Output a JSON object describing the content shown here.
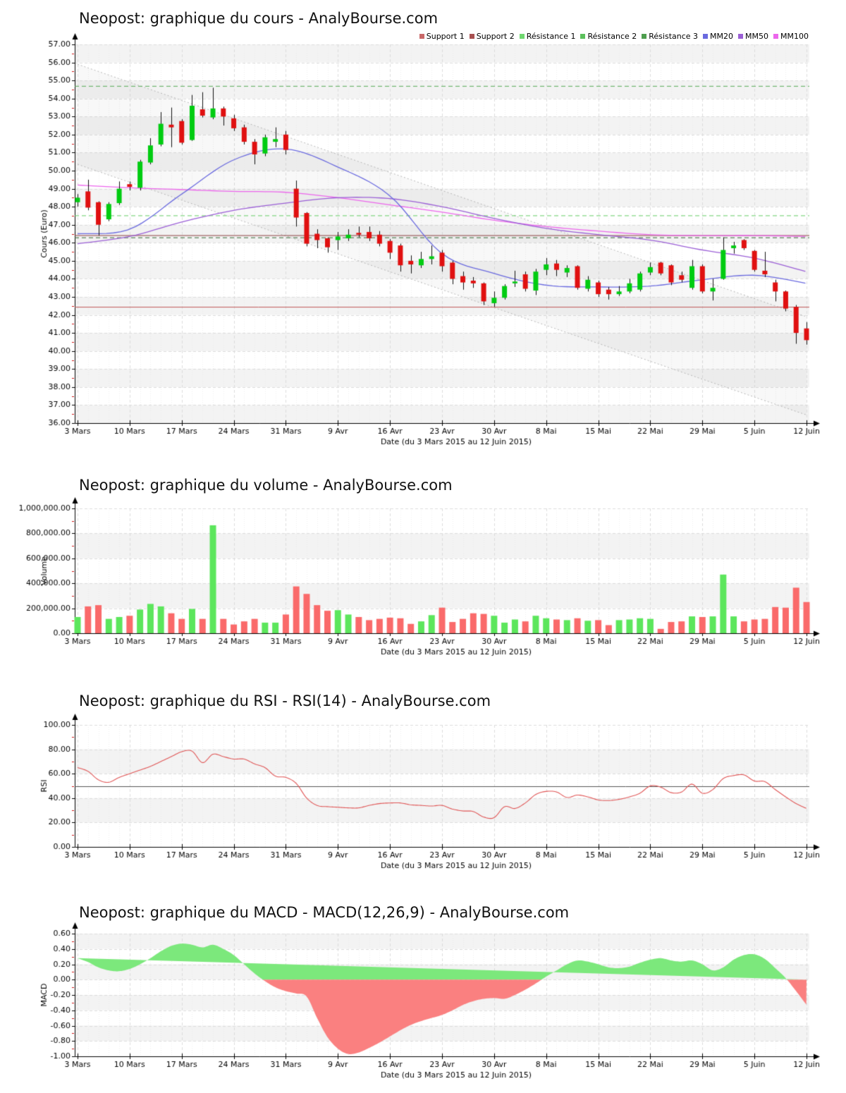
{
  "page_background": "#ffffff",
  "x_axis_label": "Date (du 3 Mars 2015 au 12 Juin 2015)",
  "x_tick_labels": [
    "3 Mars",
    "10 Mars",
    "17 Mars",
    "24 Mars",
    "31 Mars",
    "9 Avr",
    "16 Avr",
    "23 Avr",
    "30 Avr",
    "8 Mai",
    "15 Mai",
    "22 Mai",
    "29 Mai",
    "5 Juin",
    "12 Juin"
  ],
  "x_tick_indices": [
    0,
    5,
    10,
    15,
    20,
    25,
    30,
    35,
    40,
    45,
    50,
    55,
    60,
    65,
    70
  ],
  "dates": [
    "3 Mars",
    "4 Mars",
    "5 Mars",
    "6 Mars",
    "9 Mars",
    "10 Mars",
    "11 Mars",
    "12 Mars",
    "13 Mars",
    "16 Mars",
    "17 Mars",
    "18 Mars",
    "19 Mars",
    "20 Mars",
    "23 Mars",
    "24 Mars",
    "25 Mars",
    "26 Mars",
    "27 Mars",
    "30 Mars",
    "31 Mars",
    "1 Avr",
    "2 Avr",
    "7 Avr",
    "8 Avr",
    "9 Avr",
    "10 Avr",
    "13 Avr",
    "14 Avr",
    "15 Avr",
    "16 Avr",
    "17 Avr",
    "20 Avr",
    "21 Avr",
    "22 Avr",
    "23 Avr",
    "24 Avr",
    "27 Avr",
    "28 Avr",
    "29 Avr",
    "30 Avr",
    "4 Mai",
    "5 Mai",
    "6 Mai",
    "7 Mai",
    "8 Mai",
    "11 Mai",
    "12 Mai",
    "13 Mai",
    "14 Mai",
    "15 Mai",
    "18 Mai",
    "19 Mai",
    "20 Mai",
    "21 Mai",
    "22 Mai",
    "25 Mai",
    "26 Mai",
    "27 Mai",
    "28 Mai",
    "29 Mai",
    "1 Juin",
    "2 Juin",
    "3 Juin",
    "4 Juin",
    "5 Juin",
    "8 Juin",
    "9 Juin",
    "10 Juin",
    "11 Juin",
    "12 Juin"
  ],
  "legend": {
    "items": [
      {
        "label": "Support 1",
        "color": "#C96868"
      },
      {
        "label": "Support 2",
        "color": "#A85050"
      },
      {
        "label": "Résistance 1",
        "color": "#6FD86F"
      },
      {
        "label": "Résistance 2",
        "color": "#5CC05C"
      },
      {
        "label": "Résistance 3",
        "color": "#4E9E4E"
      },
      {
        "label": "MM20",
        "color": "#6A6ADF"
      },
      {
        "label": "MM50",
        "color": "#9B5FD6"
      },
      {
        "label": "MM100",
        "color": "#EC66EC"
      }
    ]
  },
  "colors": {
    "candle_up": "#00CC11",
    "candle_down": "#E01010",
    "wick": "#111111",
    "vol_up": "#5CE65C",
    "vol_down": "#FA6A6A",
    "mm20": "#6A6ADF",
    "mm50": "#9B5FD6",
    "mm100": "#EC66EC",
    "support1": "#C05858",
    "support2": "#8B4242",
    "res1": "#66CC66",
    "res2": "#55AA55",
    "res3": "#336633",
    "rsi_line": "#E05555",
    "rsi_mid": "#555555",
    "macd_pos": "#7CE87C",
    "macd_neg": "#FA8080",
    "channel": "#B5B5B5",
    "channel_fill": "rgba(120,120,120,0.055)",
    "grid": "#DCDCDC",
    "grid_minor": "#EDEDED",
    "band": "#F3F3F3",
    "axis": "#000000",
    "tick_minor": "#CC1111",
    "text": "#000000"
  },
  "chart_data": [
    {
      "id": "price",
      "type": "candlestick",
      "title": "Neopost: graphique du cours - AnalyBourse.com",
      "ylabel": "Cours (Euro)",
      "ylim": [
        36,
        57
      ],
      "ystep": 1,
      "y_tick_labels": [
        "36.00",
        "37.00",
        "38.00",
        "39.00",
        "40.00",
        "41.00",
        "42.00",
        "43.00",
        "44.00",
        "45.00",
        "46.00",
        "47.00",
        "48.00",
        "49.00",
        "50.00",
        "51.00",
        "52.00",
        "53.00",
        "54.00",
        "55.00",
        "56.00",
        "57.00"
      ],
      "ohlc": [
        [
          48.25,
          48.7,
          48.0,
          48.5
        ],
        [
          48.85,
          49.5,
          47.8,
          47.95
        ],
        [
          48.25,
          48.3,
          46.4,
          47.0
        ],
        [
          47.3,
          48.25,
          47.2,
          48.15
        ],
        [
          48.2,
          49.4,
          48.1,
          49.0
        ],
        [
          49.25,
          49.4,
          48.9,
          49.1
        ],
        [
          49.05,
          50.6,
          48.9,
          50.5
        ],
        [
          50.45,
          51.8,
          50.35,
          51.4
        ],
        [
          51.45,
          53.25,
          51.35,
          52.6
        ],
        [
          52.55,
          53.5,
          51.3,
          52.4
        ],
        [
          52.75,
          52.85,
          51.45,
          51.55
        ],
        [
          51.7,
          54.2,
          51.65,
          53.6
        ],
        [
          53.4,
          54.35,
          52.95,
          53.05
        ],
        [
          52.95,
          54.6,
          52.85,
          53.45
        ],
        [
          53.45,
          53.55,
          52.5,
          53.0
        ],
        [
          52.9,
          53.1,
          52.2,
          52.35
        ],
        [
          52.4,
          52.55,
          51.45,
          51.6
        ],
        [
          51.6,
          51.75,
          50.35,
          50.9
        ],
        [
          50.95,
          52.0,
          50.8,
          51.85
        ],
        [
          51.6,
          52.4,
          51.3,
          51.75
        ],
        [
          52.0,
          52.2,
          50.9,
          51.15
        ],
        [
          49.0,
          49.45,
          46.9,
          47.4
        ],
        [
          47.65,
          47.7,
          45.8,
          45.95
        ],
        [
          46.5,
          46.75,
          45.7,
          46.15
        ],
        [
          46.25,
          46.3,
          45.45,
          45.75
        ],
        [
          46.15,
          46.6,
          45.6,
          46.35
        ],
        [
          46.25,
          46.75,
          46.1,
          46.45
        ],
        [
          46.55,
          46.9,
          46.3,
          46.45
        ],
        [
          46.6,
          46.9,
          46.1,
          46.25
        ],
        [
          46.45,
          46.65,
          45.8,
          45.95
        ],
        [
          46.1,
          46.2,
          45.1,
          45.45
        ],
        [
          45.85,
          45.95,
          44.4,
          44.75
        ],
        [
          45.0,
          45.3,
          44.3,
          44.8
        ],
        [
          44.75,
          45.5,
          44.6,
          45.1
        ],
        [
          45.1,
          45.85,
          44.8,
          45.25
        ],
        [
          45.45,
          45.6,
          44.4,
          44.7
        ],
        [
          44.9,
          45.0,
          43.7,
          44.0
        ],
        [
          44.15,
          44.4,
          43.4,
          43.8
        ],
        [
          43.9,
          44.1,
          43.5,
          43.75
        ],
        [
          43.75,
          43.8,
          42.55,
          42.75
        ],
        [
          42.65,
          43.3,
          42.45,
          42.95
        ],
        [
          42.95,
          43.7,
          42.85,
          43.6
        ],
        [
          43.75,
          44.45,
          43.55,
          43.85
        ],
        [
          44.25,
          44.4,
          43.3,
          43.45
        ],
        [
          43.35,
          44.55,
          43.1,
          44.4
        ],
        [
          44.5,
          45.15,
          44.2,
          44.8
        ],
        [
          44.85,
          45.05,
          44.15,
          44.5
        ],
        [
          44.35,
          44.75,
          44.1,
          44.6
        ],
        [
          44.7,
          44.75,
          43.4,
          43.5
        ],
        [
          43.45,
          44.15,
          43.3,
          43.95
        ],
        [
          43.8,
          43.9,
          43.0,
          43.15
        ],
        [
          43.4,
          43.55,
          42.85,
          43.15
        ],
        [
          43.15,
          43.6,
          43.05,
          43.3
        ],
        [
          43.3,
          44.0,
          43.2,
          43.75
        ],
        [
          43.4,
          44.4,
          43.3,
          44.3
        ],
        [
          44.35,
          44.9,
          44.2,
          44.65
        ],
        [
          44.9,
          44.95,
          44.2,
          44.3
        ],
        [
          44.75,
          44.8,
          43.65,
          43.8
        ],
        [
          44.2,
          44.4,
          43.8,
          43.95
        ],
        [
          43.5,
          45.05,
          43.4,
          44.7
        ],
        [
          44.7,
          44.8,
          43.2,
          43.3
        ],
        [
          43.3,
          44.0,
          42.8,
          43.5
        ],
        [
          44.0,
          46.3,
          43.95,
          45.6
        ],
        [
          45.7,
          46.05,
          45.4,
          45.85
        ],
        [
          46.15,
          46.2,
          45.6,
          45.7
        ],
        [
          45.55,
          45.6,
          44.4,
          44.5
        ],
        [
          44.45,
          45.5,
          44.1,
          44.25
        ],
        [
          43.8,
          43.95,
          42.75,
          43.3
        ],
        [
          43.3,
          43.35,
          42.2,
          42.35
        ],
        [
          42.45,
          42.55,
          40.4,
          41.0
        ],
        [
          41.25,
          41.6,
          40.35,
          40.6
        ]
      ],
      "moving_averages": {
        "defined_at": "x_tick_indices",
        "MM20": [
          46.5,
          46.75,
          48.7,
          50.6,
          51.2,
          50.2,
          48.6,
          45.4,
          44.3,
          43.65,
          43.55,
          43.6,
          43.95,
          44.2,
          43.75
        ],
        "MM50": [
          45.95,
          46.35,
          47.15,
          47.8,
          48.2,
          48.5,
          48.45,
          48.0,
          47.35,
          46.8,
          46.45,
          46.15,
          45.6,
          45.15,
          44.4
        ],
        "MM100": [
          49.2,
          49.05,
          48.95,
          48.85,
          48.8,
          48.5,
          48.1,
          47.7,
          47.25,
          46.9,
          46.65,
          46.45,
          46.4,
          46.4,
          46.35
        ]
      },
      "levels": {
        "supports": [
          {
            "label": "Support 1",
            "value": 42.45
          },
          {
            "label": "Support 2",
            "value": 46.42
          }
        ],
        "resistances": [
          {
            "label": "Résistance 1",
            "value": 47.52
          },
          {
            "label": "Résistance 2",
            "value": 54.7
          },
          {
            "label": "Résistance 3",
            "value": 46.3
          }
        ]
      },
      "trend_channel": {
        "upper_start": 55.9,
        "upper_end": 41.9,
        "lower_start": 50.35,
        "lower_end": 36.45
      }
    },
    {
      "id": "volume",
      "type": "bar",
      "title": "Neopost: graphique du volume - AnalyBourse.com",
      "ylabel": "Volume",
      "ylim": [
        0,
        1000000
      ],
      "ystep": 200000,
      "y_tick_labels": [
        "0.00",
        "200,000.00",
        "400,000.00",
        "600,000.00",
        "800,000.00",
        "1,000,000.00"
      ],
      "values": [
        130000,
        215000,
        225000,
        115000,
        130000,
        140000,
        190000,
        235000,
        215000,
        160000,
        115000,
        195000,
        115000,
        865000,
        115000,
        70000,
        95000,
        115000,
        85000,
        85000,
        150000,
        375000,
        315000,
        225000,
        180000,
        185000,
        150000,
        130000,
        105000,
        115000,
        125000,
        120000,
        75000,
        95000,
        145000,
        205000,
        90000,
        115000,
        160000,
        155000,
        140000,
        85000,
        110000,
        95000,
        140000,
        120000,
        110000,
        105000,
        120000,
        100000,
        105000,
        65000,
        105000,
        110000,
        120000,
        115000,
        35000,
        90000,
        95000,
        135000,
        130000,
        135000,
        470000,
        135000,
        95000,
        110000,
        115000,
        210000,
        205000,
        365000,
        250000
      ]
    },
    {
      "id": "rsi",
      "type": "line",
      "title": "Neopost: graphique du RSI - RSI(14) - AnalyBourse.com",
      "ylabel": "RSI",
      "ylim": [
        0,
        100
      ],
      "ystep": 20,
      "midline": 50,
      "y_tick_labels": [
        "0.00",
        "20.00",
        "40.00",
        "60.00",
        "80.00",
        "100.00"
      ],
      "values": [
        65,
        62,
        55,
        53,
        57,
        60,
        63,
        66,
        70,
        74,
        78,
        78.5,
        69,
        76,
        74,
        72,
        72,
        68,
        65,
        58,
        57,
        52,
        40,
        34,
        33,
        32.5,
        32,
        32,
        34,
        35.5,
        36,
        36,
        34.5,
        34,
        33.5,
        34,
        31,
        29.5,
        29,
        24.5,
        24,
        33,
        31.5,
        36,
        43,
        45.5,
        45,
        40.5,
        42.5,
        41,
        38.5,
        38,
        39,
        41,
        44,
        50,
        49,
        44.5,
        45,
        51.5,
        44,
        47,
        56,
        58.5,
        59,
        54,
        53.5,
        47,
        41,
        35.5,
        31.5
      ]
    },
    {
      "id": "macd",
      "type": "area",
      "title": "Neopost: graphique du MACD - MACD(12,26,9) - AnalyBourse.com",
      "ylabel": "MACD",
      "ylim": [
        -1.0,
        0.6
      ],
      "ystep": 0.2,
      "y_tick_labels": [
        "-1.00",
        "-0.80",
        "-0.60",
        "-0.40",
        "-0.20",
        "0.00",
        "0.20",
        "0.40",
        "0.60"
      ],
      "values": [
        0.28,
        0.23,
        0.16,
        0.12,
        0.11,
        0.14,
        0.2,
        0.28,
        0.37,
        0.44,
        0.47,
        0.455,
        0.42,
        0.455,
        0.4,
        0.32,
        0.2,
        0.08,
        -0.02,
        -0.1,
        -0.15,
        -0.18,
        -0.22,
        -0.5,
        -0.75,
        -0.9,
        -0.97,
        -0.95,
        -0.89,
        -0.82,
        -0.74,
        -0.66,
        -0.59,
        -0.54,
        -0.5,
        -0.46,
        -0.4,
        -0.33,
        -0.28,
        -0.25,
        -0.24,
        -0.25,
        -0.2,
        -0.13,
        -0.05,
        0.04,
        0.12,
        0.2,
        0.25,
        0.235,
        0.2,
        0.16,
        0.15,
        0.17,
        0.22,
        0.26,
        0.28,
        0.25,
        0.235,
        0.25,
        0.2,
        0.12,
        0.16,
        0.26,
        0.32,
        0.33,
        0.27,
        0.15,
        0.02,
        -0.15,
        -0.33
      ]
    }
  ]
}
